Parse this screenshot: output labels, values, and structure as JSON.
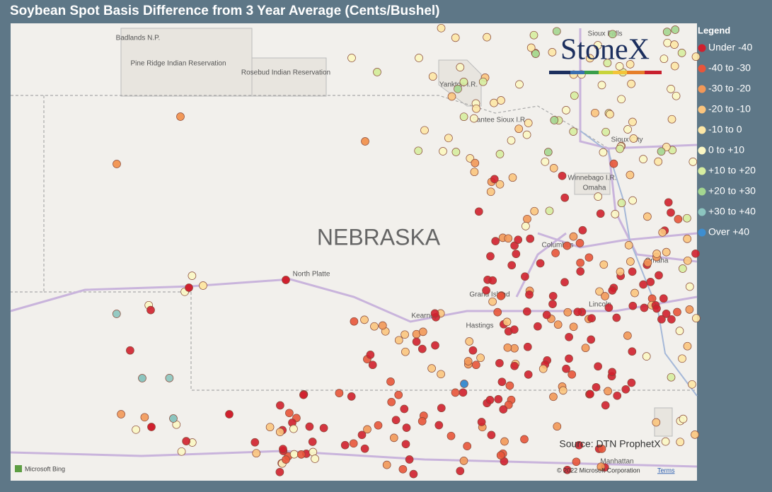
{
  "title": "Soybean Spot Basis Difference from 3 Year Average (Cents/Bushel)",
  "legend": {
    "title": "Legend",
    "items": [
      {
        "label": "Under -40",
        "color": "#d0202e"
      },
      {
        "label": "-40 to -30",
        "color": "#e8553a"
      },
      {
        "label": "-30 to -20",
        "color": "#f29858"
      },
      {
        "label": "-20 to -10",
        "color": "#fbc57e"
      },
      {
        "label": "-10 to 0",
        "color": "#fde7a6"
      },
      {
        "label": "0 to +10",
        "color": "#fbf7c4"
      },
      {
        "label": "+10 to +20",
        "color": "#d6eda0"
      },
      {
        "label": "+20 to +30",
        "color": "#a4d690"
      },
      {
        "label": "+30 to +40",
        "color": "#8cc5bf"
      },
      {
        "label": "Over +40",
        "color": "#3e8ed0"
      }
    ]
  },
  "map_labels": [
    "Badlands N.P.",
    "Pine Ridge Indian Reservation",
    "Rosebud Indian Reservation",
    "Yankton I.R.",
    "Santee Sioux I.R.",
    "Sioux Falls",
    "Sioux City",
    "Winnebago I.R.",
    "Omaha",
    "NEBRASKA",
    "North Platte",
    "Columbus",
    "Omaha",
    "Grand Island",
    "Kearney",
    "Hastings",
    "Lincoln",
    "Manhattan"
  ],
  "logo": "StoneX",
  "source": "Source: DTN ProphetX",
  "attribution": {
    "provider": "Microsoft Bing",
    "copyright": "© 2022 Microsoft Corporation",
    "terms": "Terms"
  }
}
